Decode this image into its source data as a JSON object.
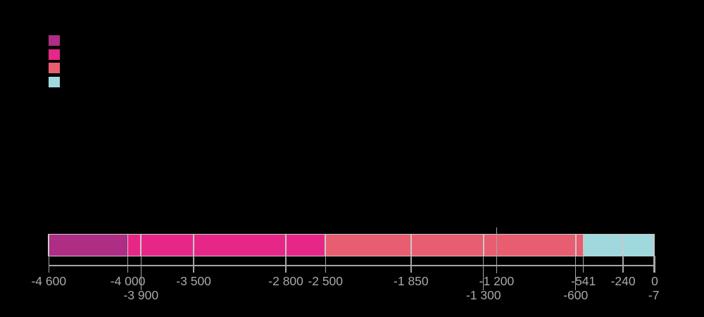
{
  "background": "#000000",
  "legend": {
    "swatches": [
      {
        "name": "purple",
        "color": "#AE2D85"
      },
      {
        "name": "pink",
        "color": "#E72787"
      },
      {
        "name": "salmon",
        "color": "#E85D70"
      },
      {
        "name": "light-blue",
        "color": "#9FD9DE"
      }
    ]
  },
  "chart_data": {
    "type": "bar",
    "subtype": "horizontal-stacked-timeline",
    "title": "",
    "xlabel": "",
    "x_axis": {
      "min": -4600,
      "max": 0
    },
    "colors": {
      "purple": "#AE2D85",
      "pink": "#E72787",
      "salmon": "#E85D70",
      "light-blue": "#9FD9DE",
      "axis-gray": "#A6A6A6",
      "label-gray": "#A8A8A8",
      "separator-gray": "#C9C9C9"
    },
    "segments": [
      {
        "start": -4600,
        "end": -4000,
        "color": "purple"
      },
      {
        "start": -4000,
        "end": -3900,
        "color": "pink"
      },
      {
        "start": -3900,
        "end": -3500,
        "color": "pink"
      },
      {
        "start": -3500,
        "end": -2800,
        "color": "pink"
      },
      {
        "start": -2800,
        "end": -2500,
        "color": "pink"
      },
      {
        "start": -2500,
        "end": -1850,
        "color": "salmon"
      },
      {
        "start": -1850,
        "end": -1300,
        "color": "salmon"
      },
      {
        "start": -1300,
        "end": -600,
        "color": "salmon"
      },
      {
        "start": -600,
        "end": -541,
        "color": "salmon"
      },
      {
        "start": -541,
        "end": -240,
        "color": "light-blue"
      },
      {
        "start": -240,
        "end": -7,
        "color": "light-blue"
      }
    ],
    "ticks": [
      {
        "value": -4600,
        "label": "-4 600",
        "label_row": 1,
        "tick_length": "short"
      },
      {
        "value": -4000,
        "label": "-4 000",
        "label_row": 1,
        "tick_length": "short"
      },
      {
        "value": -3900,
        "label": "-3 900",
        "label_row": 2,
        "tick_length": "long"
      },
      {
        "value": -3500,
        "label": "-3 500",
        "label_row": 1,
        "tick_length": "short"
      },
      {
        "value": -2800,
        "label": "-2 800",
        "label_row": 1,
        "tick_length": "short"
      },
      {
        "value": -2500,
        "label": "-2 500",
        "label_row": 1,
        "tick_length": "short"
      },
      {
        "value": -1850,
        "label": "-1 850",
        "label_row": 1,
        "tick_length": "short"
      },
      {
        "value": -1300,
        "label": "-1 300",
        "label_row": 2,
        "tick_length": "long"
      },
      {
        "value": -1200,
        "label": "-1 200",
        "label_row": 1,
        "tick_length": "above-bar-marker"
      },
      {
        "value": -600,
        "label": "-600",
        "label_row": 2,
        "tick_length": "long"
      },
      {
        "value": -541,
        "label": "-541",
        "label_row": 1,
        "tick_length": "short"
      },
      {
        "value": -240,
        "label": "-240",
        "label_row": 1,
        "tick_length": "short"
      },
      {
        "value": 0,
        "label": "0",
        "label_row": 1,
        "tick_length": "short"
      },
      {
        "value": -7,
        "label": "-7",
        "label_row": 2,
        "tick_length": "short"
      }
    ],
    "event_marker_value": -1200
  }
}
